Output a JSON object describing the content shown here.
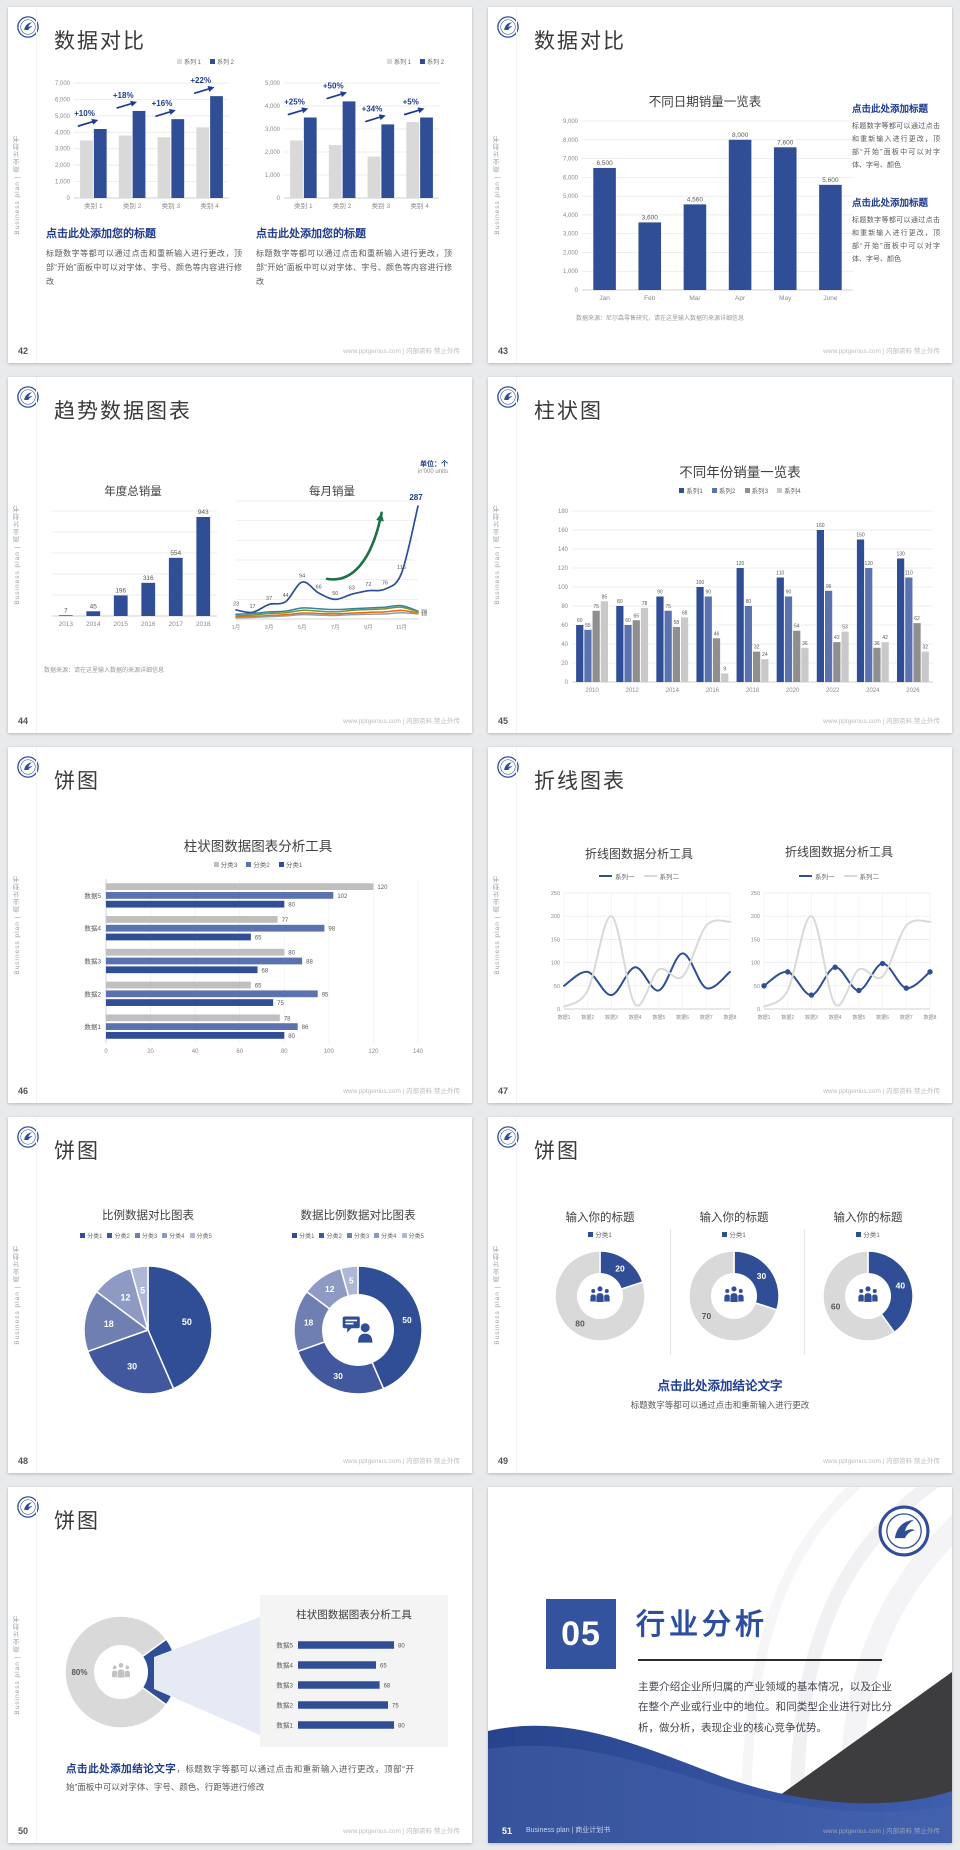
{
  "footer_url": "www.pptgenius.com | 内部资料 禁止外传",
  "side_text": "Business plan | 商业计划书",
  "colors": {
    "accent_navy": "#2F4E96",
    "accent_blue_mid": "#5B72B0",
    "gray_bar": "#D9D9D9",
    "heading_blue": "#1F3C8F"
  },
  "slides": {
    "s42": {
      "page_no": "42",
      "title": "数据对比",
      "blocks": [
        {
          "heading": "点击此处添加您的标题",
          "body": "标题数字等都可以通过点击和重新输入进行更改，顶部“开始”面板中可以对字体、字号、颜色等内容进行修改"
        },
        {
          "heading": "点击此处添加您的标题",
          "body": "标题数字等都可以通过点击和重新输入进行更改，顶部“开始”面板中可以对字体、字号、颜色等内容进行修改"
        }
      ],
      "charts": [
        {
          "type": "bar",
          "mt": 16,
          "legend": {
            "items": [
              {
                "label": "系列 1",
                "color": "#D9D9D9"
              },
              {
                "label": "系列 2",
                "color": "#2F4E96"
              }
            ]
          },
          "categories": [
            "类别 1",
            "类别 2",
            "类别 3",
            "类别 4"
          ],
          "series": [
            {
              "name": "系列 1",
              "color": "#D9D9D9",
              "values": [
                3500,
                3800,
                3700,
                4300
              ]
            },
            {
              "name": "系列 2",
              "color": "#2F4E96",
              "values": [
                4200,
                5300,
                4800,
                6200
              ]
            }
          ],
          "y": {
            "max": 7000,
            "step": 1000,
            "comma": true
          },
          "annotations": [
            "+10%",
            "+18%",
            "+16%",
            "+22%"
          ]
        },
        {
          "type": "bar",
          "mt": 16,
          "legend": {
            "items": [
              {
                "label": "系列 1",
                "color": "#D9D9D9"
              },
              {
                "label": "系列 2",
                "color": "#2F4E96"
              }
            ]
          },
          "categories": [
            "类别 1",
            "类别 2",
            "类别 3",
            "类别 4"
          ],
          "series": [
            {
              "name": "系列 1",
              "color": "#D9D9D9",
              "values": [
                2500,
                2300,
                1800,
                3300
              ]
            },
            {
              "name": "系列 2",
              "color": "#2F4E96",
              "values": [
                3500,
                4200,
                3200,
                3500
              ]
            }
          ],
          "y": {
            "max": 5000,
            "step": 1000,
            "comma": true
          },
          "annotations": [
            "+25%",
            "+50%",
            "+34%",
            "+5%"
          ]
        }
      ]
    },
    "s43": {
      "page_no": "43",
      "title": "数据对比",
      "chart": {
        "type": "bar",
        "title": "不同日期销量一览表",
        "bwf": 0.5,
        "blsize": 6.5,
        "categories": [
          "Jan",
          "Feb",
          "Mar",
          "Apr",
          "May",
          "June"
        ],
        "series": [
          {
            "name": "销量",
            "color": "#2F4E96",
            "values": [
              6500,
              3600,
              4560,
              8000,
              7600,
              5600
            ],
            "labels": true,
            "comma": true
          }
        ],
        "y": {
          "max": 9000,
          "step": 1000,
          "comma": true
        }
      },
      "note": "数据来源：尼尔森零售研究，请在这里输入数据的来源详细信息",
      "blocks": [
        {
          "heading": "点击此处添加标题",
          "body": "标题数字等都可以通过点击和重新输入进行更改，顶部“开始”面板中可以对字体、字号、颜色"
        },
        {
          "heading": "点击此处添加标题",
          "body": "标题数字等都可以通过点击和重新输入进行更改，顶部“开始”面板中可以对字体、字号、颜色"
        }
      ]
    },
    "s44": {
      "page_no": "44",
      "title": "趋势数据图表",
      "unit1": "单位：个",
      "unit2": "in'000 units",
      "note": "数据来源：请在这里输入数据的来源详细信息",
      "chartA": {
        "type": "bar",
        "title": "年度总销量",
        "bwf": 0.5,
        "blsize": 6.5,
        "categories": [
          "2013",
          "2014",
          "2015",
          "2016",
          "2017",
          "2018"
        ],
        "series": [
          {
            "name": "年度总销量",
            "color": "#2F4E96",
            "values": [
              7,
              45,
              196,
              316,
              554,
              943
            ],
            "labels": true
          }
        ],
        "y": {
          "max": 1000,
          "step": 200,
          "labels": false
        }
      },
      "chartB": {
        "type": "line",
        "title": "每月销量",
        "xevery": 2,
        "mr": 16,
        "arrow": true,
        "clsize": 5.5,
        "categories": [
          "1月",
          "2月",
          "3月",
          "4月",
          "5月",
          "6月",
          "7月",
          "8月",
          "9月",
          "10月",
          "11月",
          "12月"
        ],
        "series": [
          {
            "name": "系列1",
            "color": "#2F4E96",
            "values": [
              23,
              17,
              37,
              44,
              94,
              66,
              50,
              63,
              72,
              76,
              116,
              287
            ],
            "labels": true,
            "end": true,
            "w": 1.7
          },
          {
            "name": "系列2",
            "color": "#31859C",
            "values": [
              12,
              14,
              18,
              20,
              28,
              26,
              24,
              26,
              28,
              30,
              34,
              20
            ],
            "end": true
          },
          {
            "name": "系列3",
            "color": "#77933C",
            "values": [
              8,
              10,
              14,
              16,
              22,
              20,
              18,
              22,
              24,
              26,
              30,
              18
            ],
            "end": true
          },
          {
            "name": "系列4",
            "color": "#E46C0A",
            "values": [
              5,
              6,
              9,
              11,
              15,
              14,
              13,
              15,
              17,
              18,
              22,
              15
            ],
            "end": true
          },
          {
            "name": "系列5",
            "color": "#9B9B9B",
            "values": [
              3,
              4,
              6,
              8,
              11,
              10,
              9,
              11,
              12,
              13,
              16,
              13
            ],
            "end": true
          }
        ],
        "y": {
          "max": 300,
          "step": 50,
          "labels": false
        }
      }
    },
    "s45": {
      "page_no": "45",
      "title": "柱状图",
      "chart": {
        "type": "bar",
        "title": "不同年份销量一览表",
        "blsize": 5,
        "bwf": 0.72,
        "clsize": 6,
        "legend": {
          "items": [
            {
              "label": "系列1",
              "color": "#2F4E96"
            },
            {
              "label": "系列2",
              "color": "#5B72B0"
            },
            {
              "label": "系列3",
              "color": "#8F8F8F"
            },
            {
              "label": "系列4",
              "color": "#C9C9C9"
            }
          ]
        },
        "categories": [
          "2010",
          "2012",
          "2014",
          "2016",
          "2018",
          "2020",
          "2022",
          "2024",
          "2026"
        ],
        "series": [
          {
            "name": "系列1",
            "color": "#2F4E96",
            "values": [
              60,
              80,
              90,
              100,
              120,
              110,
              160,
              150,
              130
            ],
            "labels": true
          },
          {
            "name": "系列2",
            "color": "#5B72B0",
            "values": [
              55,
              60,
              75,
              90,
              80,
              90,
              96,
              120,
              110
            ],
            "labels": true
          },
          {
            "name": "系列3",
            "color": "#8F8F8F",
            "values": [
              75,
              65,
              58,
              46,
              32,
              54,
              42,
              36,
              62
            ],
            "labels": true
          },
          {
            "name": "系列4",
            "color": "#C9C9C9",
            "values": [
              85,
              78,
              68,
              9,
              24,
              36,
              53,
              42,
              32
            ],
            "labels": true
          }
        ],
        "y": {
          "max": 180,
          "step": 20
        }
      }
    },
    "s46": {
      "page_no": "46",
      "title": "饼图",
      "chart": {
        "type": "hbar",
        "title": "柱状图数据图表分析工具",
        "legend": {
          "items": [
            {
              "label": "分类3",
              "color": "#BFBFBF"
            },
            {
              "label": "分类2",
              "color": "#5B72B0"
            },
            {
              "label": "分类1",
              "color": "#2F4E96"
            }
          ]
        },
        "categories": [
          "数据5",
          "数据4",
          "数据3",
          "数据2",
          "数据1"
        ],
        "series": [
          {
            "name": "分类3",
            "color": "#BFBFBF",
            "values": [
              120,
              77,
              80,
              65,
              78
            ]
          },
          {
            "name": "分类2",
            "color": "#5B72B0",
            "values": [
              102,
              98,
              88,
              95,
              86
            ]
          },
          {
            "name": "分类1",
            "color": "#2F4E96",
            "values": [
              80,
              65,
              68,
              75,
              80
            ]
          }
        ],
        "x": {
          "max": 140,
          "step": 20
        }
      }
    },
    "s47": {
      "page_no": "47",
      "title": "折线图表",
      "charts": [
        {
          "type": "line",
          "title": "折线图数据分析工具",
          "vgrid": true,
          "clsize": 5,
          "legend": {
            "items": [
              {
                "label": "系列一",
                "color": "#2F4E96",
                "line": true
              },
              {
                "label": "系列二",
                "color": "#D9D9D9",
                "line": true
              }
            ]
          },
          "categories": [
            "数据1",
            "数据2",
            "数据3",
            "数据4",
            "数据5",
            "数据6",
            "数据7",
            "数据8"
          ],
          "series": [
            {
              "name": "系列一",
              "color": "#2F4E96",
              "values": [
                50,
                80,
                30,
                90,
                40,
                120,
                45,
                80
              ],
              "w": 2
            },
            {
              "name": "系列二",
              "color": "#D9D9D9",
              "values": [
                5,
                40,
                200,
                10,
                85,
                70,
                180,
                188
              ],
              "w": 2
            }
          ],
          "y": {
            "max": 250,
            "step": 50
          }
        },
        {
          "type": "line",
          "title": "折线图数据分析工具",
          "vgrid": true,
          "clsize": 5,
          "legend": {
            "items": [
              {
                "label": "系列一",
                "color": "#2F4E96",
                "line": true
              },
              {
                "label": "系列二",
                "color": "#D9D9D9",
                "line": true
              }
            ]
          },
          "categories": [
            "数据1",
            "数据2",
            "数据3",
            "数据4",
            "数据5",
            "数据6",
            "数据7",
            "数据8"
          ],
          "series": [
            {
              "name": "系列一",
              "color": "#2F4E96",
              "values": [
                50,
                80,
                30,
                90,
                40,
                98,
                45,
                80
              ],
              "w": 2,
              "marker": true
            },
            {
              "name": "系列二",
              "color": "#D9D9D9",
              "values": [
                5,
                40,
                200,
                10,
                85,
                70,
                180,
                188
              ],
              "w": 2
            }
          ],
          "y": {
            "max": 250,
            "step": 50
          }
        }
      ]
    },
    "s48": {
      "page_no": "48",
      "title": "饼图",
      "charts": [
        {
          "type": "pie",
          "title": "比例数据对比图表",
          "r": 64,
          "lsize": 9,
          "legend": {
            "items": [
              {
                "label": "分类1",
                "color": "#2F4E96"
              },
              {
                "label": "分类2",
                "color": "#41589E"
              },
              {
                "label": "分类3",
                "color": "#6F7FB2"
              },
              {
                "label": "分类4",
                "color": "#8E9AC4"
              },
              {
                "label": "分类5",
                "color": "#AEB8D6"
              }
            ]
          },
          "values": [
            50,
            30,
            18,
            12,
            5
          ],
          "colors": [
            "#2F4E96",
            "#41589E",
            "#6F7FB2",
            "#8E9AC4",
            "#AEB8D6"
          ]
        },
        {
          "type": "pie",
          "title": "数据比例数据对比图表",
          "r": 64,
          "inner": 36,
          "lsize": 8.5,
          "icon": "person-speech",
          "icon_scale": 0.9,
          "legend": {
            "items": [
              {
                "label": "分类1",
                "color": "#2F4E96"
              },
              {
                "label": "分类2",
                "color": "#41589E"
              },
              {
                "label": "分类3",
                "color": "#6F7FB2"
              },
              {
                "label": "分类4",
                "color": "#8E9AC4"
              },
              {
                "label": "分类5",
                "color": "#AEB8D6"
              }
            ]
          },
          "values": [
            50,
            30,
            18,
            12,
            5
          ],
          "colors": [
            "#2F4E96",
            "#41589E",
            "#6F7FB2",
            "#8E9AC4",
            "#AEB8D6"
          ]
        }
      ]
    },
    "s49": {
      "page_no": "49",
      "title": "饼图",
      "conclusion_heading": "点击此处添加结论文字",
      "conclusion_sub": "标题数字等都可以通过点击和重新输入进行更改",
      "cols": [
        {
          "title": "输入你的标题",
          "legend": {
            "items": [
              {
                "label": "分类1",
                "color": "#2F4E96"
              }
            ]
          },
          "chart": {
            "type": "pie",
            "values": [
              20,
              80
            ],
            "colors": [
              "#2F4E96",
              "#D9D9D9"
            ],
            "label_colors": [
              "#ffffff",
              "#595959"
            ],
            "r": 45,
            "inner": 23,
            "lsize": 8.5,
            "icon": "people-group",
            "icon_scale": 0.75
          }
        },
        {
          "title": "输入你的标题",
          "legend": {
            "items": [
              {
                "label": "分类1",
                "color": "#2F4E96"
              }
            ]
          },
          "chart": {
            "type": "pie",
            "values": [
              30,
              70
            ],
            "colors": [
              "#2F4E96",
              "#D9D9D9"
            ],
            "label_colors": [
              "#ffffff",
              "#595959"
            ],
            "r": 45,
            "inner": 23,
            "lsize": 8.5,
            "icon": "people-group",
            "icon_scale": 0.75
          }
        },
        {
          "title": "输入你的标题",
          "legend": {
            "items": [
              {
                "label": "分类1",
                "color": "#2F4E96"
              }
            ]
          },
          "chart": {
            "type": "pie",
            "values": [
              40,
              60
            ],
            "colors": [
              "#2F4E96",
              "#D9D9D9"
            ],
            "label_colors": [
              "#ffffff",
              "#595959"
            ],
            "r": 45,
            "inner": 23,
            "lsize": 8.5,
            "icon": "people-group",
            "icon_scale": 0.75
          }
        }
      ]
    },
    "s50": {
      "page_no": "50",
      "title": "饼图",
      "donut": {
        "type": "pie",
        "values": [
          20,
          80
        ],
        "colors": [
          "#2F4E96",
          "#D9D9D9"
        ],
        "labels": [
          "20%",
          "80%"
        ],
        "label_colors": [
          "#ffffff",
          "#595959"
        ],
        "start": 54,
        "r": 56,
        "inner": 27,
        "lsize": 8,
        "icon": "people-group",
        "icon_color": "#C2C2C2",
        "icon_scale": 0.7
      },
      "panel_title": "柱状图数据图表分析工具",
      "panel_chart": {
        "type": "hbar",
        "ml": 30,
        "mr": 22,
        "bh": 7.5,
        "categories": [
          "数据5",
          "数据4",
          "数据3",
          "数据2",
          "数据1"
        ],
        "series": [
          {
            "name": "数据",
            "color": "#2F4E96",
            "values": [
              80,
              65,
              68,
              75,
              80
            ]
          }
        ],
        "xmax": 100
      },
      "conclusion_lead": "点击此处添加结论文字",
      "conclusion_rest": "，标题数字等都可以通过点击和重新输入进行更改，顶部“开始”面板中可以对字体、字号、颜色、行距等进行修改"
    },
    "s51": {
      "page_no": "51",
      "number": "05",
      "title": "行业分析",
      "body": "主要介绍企业所归属的产业领域的基本情况，以及企业在整个产业或行业中的地位。和同类型企业进行对比分析，做分析，表现企业的核心竞争优势。",
      "brand": "Business plan | 商业计划书"
    }
  }
}
